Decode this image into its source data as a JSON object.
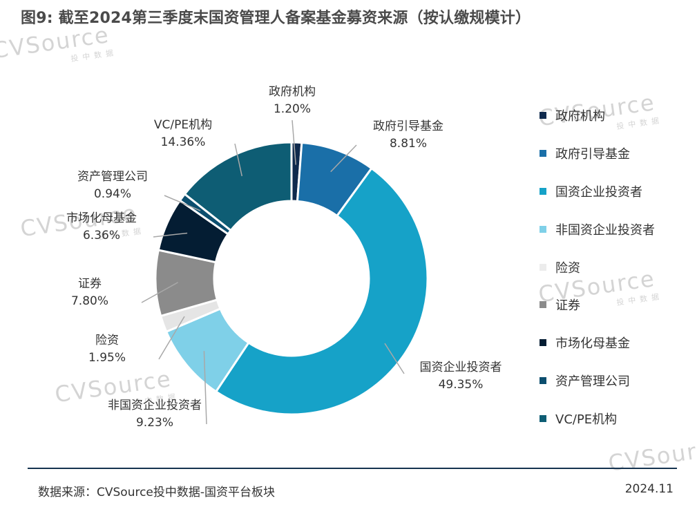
{
  "title": "图9: 截至2024第三季度末国资管理人备案基金募资来源（按认缴规模计）",
  "watermark": {
    "brand": "CVSource",
    "sub": "投中数据"
  },
  "chart_data": {
    "type": "pie",
    "variant": "donut",
    "title": "图9: 截至2024第三季度末国资管理人备案基金募资来源（按认缴规模计）",
    "unit": "%",
    "legend_position": "right",
    "slices": [
      {
        "name": "政府机构",
        "value": 1.2,
        "label": "1.20%",
        "color": "#0f2a4d"
      },
      {
        "name": "政府引导基金",
        "value": 8.81,
        "label": "8.81%",
        "color": "#1a6fa8"
      },
      {
        "name": "国资企业投资者",
        "value": 49.35,
        "label": "49.35%",
        "color": "#16a2c8"
      },
      {
        "name": "非国资企业投资者",
        "value": 9.23,
        "label": "9.23%",
        "color": "#7fd0e8"
      },
      {
        "name": "险资",
        "value": 1.95,
        "label": "1.95%",
        "color": "#e5e5e5"
      },
      {
        "name": "证券",
        "value": 7.8,
        "label": "7.80%",
        "color": "#8b8b8b"
      },
      {
        "name": "市场化母基金",
        "value": 6.36,
        "label": "6.36%",
        "color": "#041d33"
      },
      {
        "name": "资产管理公司",
        "value": 0.94,
        "label": "0.94%",
        "color": "#0c4e6e"
      },
      {
        "name": "VC/PE机构",
        "value": 14.36,
        "label": "14.36%",
        "color": "#0e5d74"
      }
    ]
  },
  "footer": {
    "source": "数据来源：CVSource投中数据-国资平台板块",
    "date": "2024.11"
  }
}
